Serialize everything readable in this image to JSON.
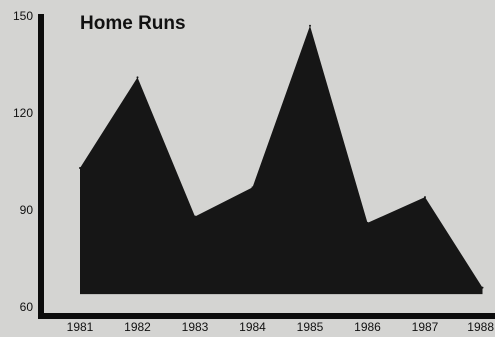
{
  "chart_data": {
    "type": "area",
    "title": "Home Runs",
    "xlabel": "",
    "ylabel": "",
    "categories": [
      "1981",
      "1982",
      "1983",
      "1984",
      "1985",
      "1986",
      "1987",
      "1988"
    ],
    "series": [
      {
        "values": [
          103,
          131,
          88,
          97,
          147,
          86,
          94,
          66
        ]
      }
    ],
    "ylim": [
      60,
      150
    ],
    "yticks": [
      "60",
      "90",
      "120",
      "150"
    ],
    "baseline": 64,
    "grid": false,
    "legend": "none",
    "colors": {
      "fill": "#161616",
      "axis": "#0c0c0c",
      "background": "#d4d4d2",
      "text": "#111111"
    }
  }
}
